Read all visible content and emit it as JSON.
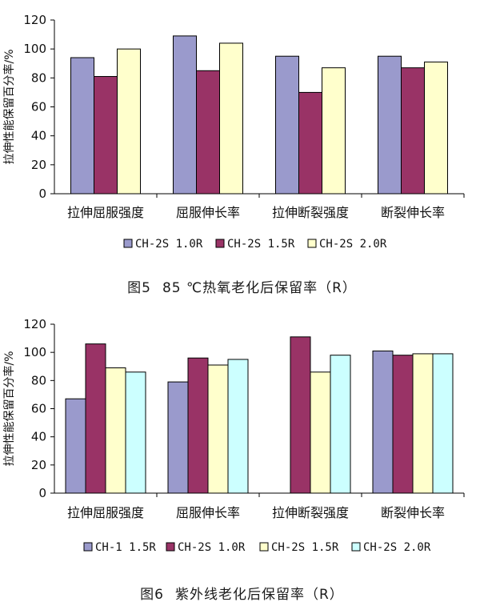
{
  "figures": [
    {
      "caption_number": "图5",
      "caption_text": "85 ℃热氧老化后保留率（R）"
    },
    {
      "caption_number": "图6",
      "caption_text": "紫外线老化后保留率（R）"
    }
  ],
  "chart_data": [
    {
      "type": "bar",
      "title": "",
      "ylabel": "拉伸性能保留百分率/%",
      "xlabel": "",
      "ylim": [
        0,
        120
      ],
      "yticks": [
        0,
        20,
        40,
        60,
        80,
        100,
        120
      ],
      "categories": [
        "拉伸屈服强度",
        "屈服伸长率",
        "拉伸断裂强度",
        "断裂伸长率"
      ],
      "series": [
        {
          "name": "CH-2S  1.0R",
          "color": "#9a9acc",
          "values": [
            94,
            109,
            95,
            95
          ]
        },
        {
          "name": "CH-2S  1.5R",
          "color": "#993366",
          "values": [
            81,
            85,
            70,
            87
          ]
        },
        {
          "name": "CH-2S  2.0R",
          "color": "#ffffcc",
          "values": [
            100,
            104,
            87,
            91
          ]
        }
      ],
      "legend": "bottom",
      "grid": false
    },
    {
      "type": "bar",
      "title": "",
      "ylabel": "拉伸性能保留百分率/%",
      "xlabel": "",
      "ylim": [
        0,
        120
      ],
      "yticks": [
        0,
        20,
        40,
        60,
        80,
        100,
        120
      ],
      "categories": [
        "拉伸屈服强度",
        "屈服伸长率",
        "拉伸断裂强度",
        "断裂伸长率"
      ],
      "series": [
        {
          "name": "CH-1  1.5R",
          "color": "#9a9acc",
          "values": [
            67,
            79,
            0,
            101
          ]
        },
        {
          "name": "CH-2S  1.0R",
          "color": "#993366",
          "values": [
            106,
            96,
            111,
            98
          ]
        },
        {
          "name": "CH-2S  1.5R",
          "color": "#ffffcc",
          "values": [
            89,
            91,
            86,
            99
          ]
        },
        {
          "name": "CH-2S  2.0R",
          "color": "#ccffff",
          "values": [
            86,
            95,
            98,
            99
          ]
        }
      ],
      "legend": "bottom",
      "grid": false
    }
  ]
}
